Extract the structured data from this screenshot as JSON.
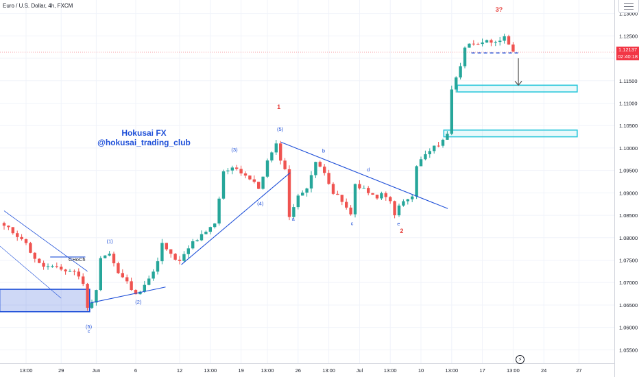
{
  "symbol": {
    "title": "Euro / U.S. Dollar, 4h, FXCM"
  },
  "watermark": {
    "line1": "Hokusai FX",
    "line2": "@hokusai_trading_club"
  },
  "colors": {
    "up": "#26a69a",
    "down": "#ef5350",
    "trendline": "#1e4fd8",
    "zone_border": "#26c6da",
    "zone_fill": "rgba(38,198,218,0.10)",
    "demand_fill": "rgba(30,79,216,0.22)",
    "wave_red": "#e53935",
    "wave_blue": "#1e4fd8",
    "price_line": "#f23645"
  },
  "price_tag": {
    "price": "1.12137",
    "countdown": "02:40:18"
  },
  "chart_data": {
    "type": "candlestick",
    "ylim": [
      1.052,
      1.133
    ],
    "y_ticks": [
      "1.05500",
      "1.06000",
      "1.06500",
      "1.07000",
      "1.07500",
      "1.08000",
      "1.08500",
      "1.09000",
      "1.09500",
      "1.10000",
      "1.10500",
      "1.11000",
      "1.11500",
      "1.12000",
      "1.12500",
      "1.13000"
    ],
    "x_ticks": [
      {
        "label": "13:00",
        "i": 5
      },
      {
        "label": "29",
        "i": 13
      },
      {
        "label": "Jun",
        "i": 21
      },
      {
        "label": "6",
        "i": 30
      },
      {
        "label": "12",
        "i": 40
      },
      {
        "label": "13:00",
        "i": 47
      },
      {
        "label": "19",
        "i": 54
      },
      {
        "label": "13:00",
        "i": 60
      },
      {
        "label": "26",
        "i": 67
      },
      {
        "label": "13:00",
        "i": 74
      },
      {
        "label": "Jul",
        "i": 81
      },
      {
        "label": "13:00",
        "i": 88
      },
      {
        "label": "10",
        "i": 95
      },
      {
        "label": "13:00",
        "i": 102
      },
      {
        "label": "17",
        "i": 109
      },
      {
        "label": "13:00",
        "i": 116
      },
      {
        "label": "24",
        "i": 123
      },
      {
        "label": "27",
        "i": 131
      }
    ],
    "path": [
      [
        0,
        1.0825
      ],
      [
        4,
        1.08
      ],
      [
        8,
        1.074
      ],
      [
        12,
        1.073
      ],
      [
        16,
        1.0725
      ],
      [
        18,
        1.07
      ],
      [
        19,
        1.064
      ],
      [
        21,
        1.068
      ],
      [
        22,
        1.076
      ],
      [
        24,
        1.0765
      ],
      [
        26,
        1.072
      ],
      [
        28,
        1.07
      ],
      [
        30,
        1.067
      ],
      [
        32,
        1.07
      ],
      [
        34,
        1.072
      ],
      [
        36,
        1.0785
      ],
      [
        38,
        1.076
      ],
      [
        40,
        1.0745
      ],
      [
        43,
        1.079
      ],
      [
        46,
        1.081
      ],
      [
        48,
        1.083
      ],
      [
        50,
        1.0945
      ],
      [
        52,
        1.096
      ],
      [
        55,
        1.094
      ],
      [
        58,
        1.091
      ],
      [
        60,
        1.097
      ],
      [
        62,
        1.1005
      ],
      [
        64,
        1.095
      ],
      [
        65,
        1.085
      ],
      [
        67,
        1.089
      ],
      [
        69,
        1.0915
      ],
      [
        71,
        1.0965
      ],
      [
        73,
        1.095
      ],
      [
        75,
        1.09
      ],
      [
        77,
        1.088
      ],
      [
        79,
        1.085
      ],
      [
        80,
        1.092
      ],
      [
        82,
        1.091
      ],
      [
        84,
        1.089
      ],
      [
        86,
        1.0895
      ],
      [
        88,
        1.088
      ],
      [
        89,
        1.0855
      ],
      [
        91,
        1.088
      ],
      [
        93,
        1.089
      ],
      [
        94,
        1.096
      ],
      [
        96,
        1.0985
      ],
      [
        98,
        1.1
      ],
      [
        99,
        1.101
      ],
      [
        101,
        1.103
      ],
      [
        102,
        1.113
      ],
      [
        103,
        1.116
      ],
      [
        104,
        1.1185
      ],
      [
        105,
        1.1225
      ],
      [
        107,
        1.1235
      ],
      [
        109,
        1.124
      ],
      [
        111,
        1.123
      ],
      [
        113,
        1.1235
      ],
      [
        114,
        1.125
      ],
      [
        116,
        1.1215
      ]
    ],
    "price_line": 1.12137,
    "dashed_level": 1.1215,
    "zones": [
      {
        "x1": 103.3,
        "x2": 130.6,
        "y1": 1.1125,
        "y2": 1.114
      },
      {
        "x1": 100.2,
        "x2": 130.6,
        "y1": 1.1025,
        "y2": 1.104
      }
    ],
    "demand_zone": {
      "x1": -1,
      "x2": 19.5,
      "y1": 1.0635,
      "y2": 1.0685
    },
    "choch_level": {
      "x1": 10.5,
      "x2": 18.5,
      "y": 1.0757
    },
    "trendlines": [
      {
        "x1": 0,
        "y1": 1.086,
        "x2": 19,
        "y2": 1.0725,
        "w": 0.8
      },
      {
        "x1": -2,
        "y1": 1.079,
        "x2": 13,
        "y2": 1.0665,
        "w": 0.6
      },
      {
        "x1": 19.8,
        "y1": 1.0655,
        "x2": 36.8,
        "y2": 1.069,
        "w": 1.1
      },
      {
        "x1": 40.4,
        "y1": 1.074,
        "x2": 65.2,
        "y2": 1.0945,
        "w": 1.1
      },
      {
        "x1": 63.1,
        "y1": 1.1013,
        "x2": 101.1,
        "y2": 1.0865,
        "w": 1.1
      }
    ],
    "arrow": {
      "x": 117.2,
      "y_from": 1.12,
      "y_to": 1.114
    },
    "wave_labels": [
      {
        "text": "1",
        "i": 62.6,
        "y": 1.1087,
        "color": "red",
        "bold": true
      },
      {
        "text": "(5)",
        "i": 62.9,
        "y": 1.1038,
        "color": "blue"
      },
      {
        "text": "(3)",
        "i": 52.5,
        "y": 1.0992,
        "color": "blue"
      },
      {
        "text": "(4)",
        "i": 58.4,
        "y": 1.0872,
        "color": "blue"
      },
      {
        "text": "(1)",
        "i": 24.1,
        "y": 1.0788,
        "color": "blue"
      },
      {
        "text": "(2)",
        "i": 30.6,
        "y": 1.0653,
        "color": "blue"
      },
      {
        "text": "(5)",
        "i": 19.3,
        "y": 1.0598,
        "color": "blue"
      },
      {
        "text": "c",
        "i": 19.3,
        "y": 1.0588,
        "color": "blue"
      },
      {
        "text": "CHoCh",
        "i": 16.6,
        "y": 1.0748,
        "color": "dark"
      },
      {
        "text": "a",
        "i": 65.9,
        "y": 1.0838,
        "color": "blue"
      },
      {
        "text": "b",
        "i": 72.8,
        "y": 1.099,
        "color": "blue"
      },
      {
        "text": "c",
        "i": 79.3,
        "y": 1.0828,
        "color": "blue"
      },
      {
        "text": "d",
        "i": 83.0,
        "y": 1.0948,
        "color": "blue"
      },
      {
        "text": "e",
        "i": 89.9,
        "y": 1.0827,
        "color": "blue"
      },
      {
        "text": "2",
        "i": 90.6,
        "y": 1.081,
        "color": "red",
        "bold": true
      },
      {
        "text": "3?",
        "i": 112.8,
        "y": 1.1304,
        "color": "red",
        "bold": true
      }
    ]
  }
}
